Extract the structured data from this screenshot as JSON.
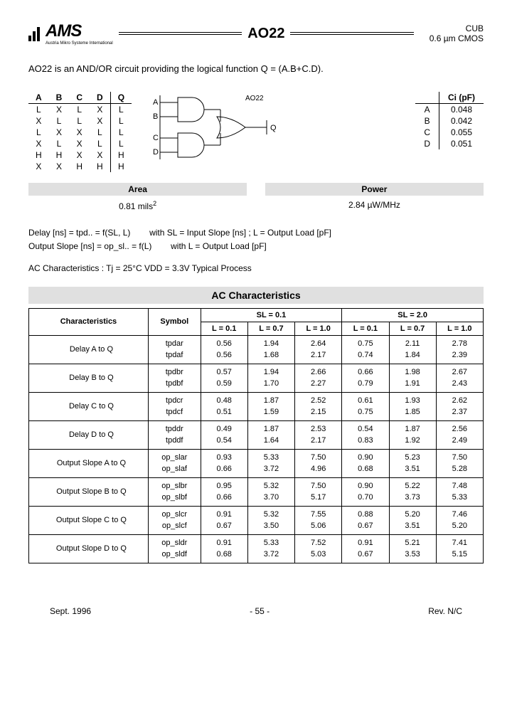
{
  "header": {
    "logo": "AMS",
    "logo_sub": "Austria Mikro Systeme International",
    "title": "AO22",
    "lib": "CUB",
    "process": "0.6 µm CMOS"
  },
  "description": "AO22 is an AND/OR circuit providing the logical function Q = (A.B+C.D).",
  "truth_table": {
    "headers": [
      "A",
      "B",
      "C",
      "D",
      "Q"
    ],
    "rows": [
      [
        "L",
        "X",
        "L",
        "X",
        "L"
      ],
      [
        "X",
        "L",
        "L",
        "X",
        "L"
      ],
      [
        "L",
        "X",
        "X",
        "L",
        "L"
      ],
      [
        "X",
        "L",
        "X",
        "L",
        "L"
      ],
      [
        "H",
        "H",
        "X",
        "X",
        "H"
      ],
      [
        "X",
        "X",
        "H",
        "H",
        "H"
      ]
    ]
  },
  "diagram": {
    "label": "AO22",
    "inputs": [
      "A",
      "B",
      "C",
      "D"
    ],
    "output": "Q"
  },
  "ci_table": {
    "header": "Ci (pF)",
    "rows": [
      [
        "A",
        "0.048"
      ],
      [
        "B",
        "0.042"
      ],
      [
        "C",
        "0.055"
      ],
      [
        "D",
        "0.051"
      ]
    ]
  },
  "area": {
    "label": "Area",
    "value": "0.81  mils",
    "unit_sup": "2"
  },
  "power": {
    "label": "Power",
    "value": "2.84 µW/MHz"
  },
  "notes": {
    "line1a": "Delay [ns]  =  tpd..  =  f(SL, L)",
    "line1b": "with  SL = Input Slope [ns] ;  L = Output Load [pF]",
    "line2a": "Output Slope [ns]  =  op_sl..  =  f(L)",
    "line2b": "with  L = Output Load [pF]",
    "line3": "AC Characteristics :    Tj = 25°C    VDD = 3.3V    Typical Process"
  },
  "ac": {
    "title": "AC Characteristics",
    "col_char": "Characteristics",
    "col_sym": "Symbol",
    "groups": [
      {
        "title": "SL = 0.1",
        "loads": [
          "L = 0.1",
          "L = 0.7",
          "L = 1.0"
        ]
      },
      {
        "title": "SL = 2.0",
        "loads": [
          "L = 0.1",
          "L = 0.7",
          "L = 1.0"
        ]
      }
    ],
    "rows": [
      {
        "char": "Delay A to Q",
        "sym": [
          "tpdar",
          "tpdaf"
        ],
        "vals": [
          [
            "0.56",
            "1.94",
            "2.64",
            "0.75",
            "2.11",
            "2.78"
          ],
          [
            "0.56",
            "1.68",
            "2.17",
            "0.74",
            "1.84",
            "2.39"
          ]
        ]
      },
      {
        "char": "Delay B to Q",
        "sym": [
          "tpdbr",
          "tpdbf"
        ],
        "vals": [
          [
            "0.57",
            "1.94",
            "2.66",
            "0.66",
            "1.98",
            "2.67"
          ],
          [
            "0.59",
            "1.70",
            "2.27",
            "0.79",
            "1.91",
            "2.43"
          ]
        ]
      },
      {
        "char": "Delay C to Q",
        "sym": [
          "tpdcr",
          "tpdcf"
        ],
        "vals": [
          [
            "0.48",
            "1.87",
            "2.52",
            "0.61",
            "1.93",
            "2.62"
          ],
          [
            "0.51",
            "1.59",
            "2.15",
            "0.75",
            "1.85",
            "2.37"
          ]
        ]
      },
      {
        "char": "Delay D to Q",
        "sym": [
          "tpddr",
          "tpddf"
        ],
        "vals": [
          [
            "0.49",
            "1.87",
            "2.53",
            "0.54",
            "1.87",
            "2.56"
          ],
          [
            "0.54",
            "1.64",
            "2.17",
            "0.83",
            "1.92",
            "2.49"
          ]
        ]
      },
      {
        "char": "Output Slope A to Q",
        "sym": [
          "op_slar",
          "op_slaf"
        ],
        "vals": [
          [
            "0.93",
            "5.33",
            "7.50",
            "0.90",
            "5.23",
            "7.50"
          ],
          [
            "0.66",
            "3.72",
            "4.96",
            "0.68",
            "3.51",
            "5.28"
          ]
        ]
      },
      {
        "char": "Output Slope B to Q",
        "sym": [
          "op_slbr",
          "op_slbf"
        ],
        "vals": [
          [
            "0.95",
            "5.32",
            "7.50",
            "0.90",
            "5.22",
            "7.48"
          ],
          [
            "0.66",
            "3.70",
            "5.17",
            "0.70",
            "3.73",
            "5.33"
          ]
        ]
      },
      {
        "char": "Output Slope C to Q",
        "sym": [
          "op_slcr",
          "op_slcf"
        ],
        "vals": [
          [
            "0.91",
            "5.32",
            "7.55",
            "0.88",
            "5.20",
            "7.46"
          ],
          [
            "0.67",
            "3.50",
            "5.06",
            "0.67",
            "3.51",
            "5.20"
          ]
        ]
      },
      {
        "char": "Output Slope D to Q",
        "sym": [
          "op_sldr",
          "op_sldf"
        ],
        "vals": [
          [
            "0.91",
            "5.33",
            "7.52",
            "0.91",
            "5.21",
            "7.41"
          ],
          [
            "0.68",
            "3.72",
            "5.03",
            "0.67",
            "3.53",
            "5.15"
          ]
        ]
      }
    ]
  },
  "footer": {
    "date": "Sept. 1996",
    "page": "- 55 -",
    "rev": "Rev. N/C"
  }
}
